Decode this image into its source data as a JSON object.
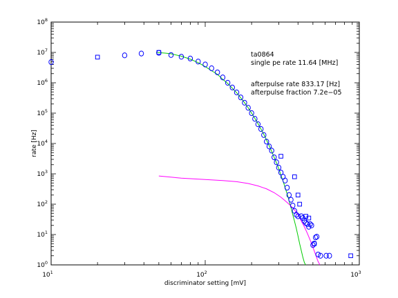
{
  "chart_data": {
    "type": "scatter",
    "title": "",
    "xlabel": "discriminator setting [mV]",
    "ylabel": "rate [Hz]",
    "xscale": "log",
    "yscale": "log",
    "xlim": [
      10,
      1000
    ],
    "ylim": [
      1,
      100000000
    ],
    "grid": false,
    "x_ticks": [
      {
        "value": 10,
        "base": "10",
        "exp": "1"
      },
      {
        "value": 100,
        "base": "10",
        "exp": "2"
      },
      {
        "value": 1000,
        "base": "10",
        "exp": "3"
      }
    ],
    "y_ticks": [
      {
        "value": 1,
        "base": "10",
        "exp": "0"
      },
      {
        "value": 10,
        "base": "10",
        "exp": "1"
      },
      {
        "value": 100,
        "base": "10",
        "exp": "2"
      },
      {
        "value": 1000,
        "base": "10",
        "exp": "3"
      },
      {
        "value": 10000,
        "base": "10",
        "exp": "4"
      },
      {
        "value": 100000,
        "base": "10",
        "exp": "5"
      },
      {
        "value": 1000000,
        "base": "10",
        "exp": "6"
      },
      {
        "value": 10000000,
        "base": "10",
        "exp": "7"
      },
      {
        "value": 100000000,
        "base": "10",
        "exp": "8"
      }
    ],
    "annotations": {
      "line1": "ta0864",
      "line2": "single pe rate 11.64 [MHz]",
      "line3": "afterpulse rate 833.17 [Hz]",
      "line4": "afterpulse fraction 7.2e−05"
    },
    "colors": {
      "markers": "#0000ff",
      "main_fit": "#00cc00",
      "afterpulse_fit": "#ff00ff"
    },
    "series": [
      {
        "marker": "circle",
        "x": [
          10,
          30,
          38.5,
          50,
          60,
          70,
          80,
          90,
          100,
          110,
          120,
          130,
          140,
          150,
          160,
          170,
          180,
          190,
          200,
          210,
          220,
          230,
          240,
          250,
          260,
          270,
          280,
          290,
          300,
          310,
          320,
          330,
          340,
          350,
          360,
          370,
          380,
          390,
          400,
          420,
          430,
          440,
          450,
          460,
          470,
          480,
          490,
          500,
          510,
          520,
          530,
          540,
          560,
          610,
          640
        ],
        "y": [
          4800000,
          8000000,
          9200000,
          9700000,
          8200000,
          7200000,
          6300000,
          5000000,
          4000000,
          3000000,
          2200000,
          1500000,
          1000000,
          700000,
          480000,
          330000,
          220000,
          150000,
          100000,
          65000,
          43000,
          30000,
          19000,
          11500,
          8000,
          5800,
          3500,
          2400,
          1600,
          1100,
          800,
          600,
          350,
          200,
          140,
          90,
          60,
          45,
          40,
          40,
          35,
          28,
          24,
          22,
          18,
          22,
          20,
          4.5,
          5,
          8,
          8.5,
          2.2,
          2,
          2,
          2
        ]
      },
      {
        "marker": "square",
        "x": [
          20,
          50,
          310,
          380,
          400,
          410,
          450,
          470,
          510,
          880
        ],
        "y": [
          7000000,
          10000000,
          3800,
          800,
          200,
          100,
          40,
          35,
          5,
          2
        ]
      }
    ],
    "fits": [
      {
        "name": "",
        "x": [
          48,
          55,
          60,
          70,
          80,
          90,
          100,
          110,
          120,
          130,
          140,
          150,
          160,
          170,
          180,
          190,
          200,
          210,
          220,
          230,
          240,
          250,
          260,
          270,
          280,
          290,
          300,
          310,
          320,
          330,
          340,
          350,
          360,
          370,
          380,
          390,
          400,
          410,
          420,
          430,
          440,
          448
        ],
        "y": [
          10000000,
          9500000,
          9000000,
          7500000,
          6000000,
          4600000,
          3400000,
          2500000,
          1900000,
          1300000,
          950000,
          660000,
          470000,
          320000,
          220000,
          150000,
          100000,
          67000,
          45000,
          30000,
          20000,
          13000,
          8500,
          5500,
          3500,
          2300,
          1500,
          900,
          580,
          350,
          220,
          130,
          78,
          45,
          27,
          16,
          9,
          5,
          3,
          1.8,
          1.2,
          1
        ]
      },
      {
        "name": "",
        "x": [
          50,
          70,
          100,
          130,
          160,
          190,
          220,
          250,
          280,
          310,
          330,
          350,
          370,
          390,
          400,
          420,
          440,
          460,
          480,
          500,
          520,
          540,
          555
        ],
        "y": [
          850,
          720,
          650,
          600,
          550,
          480,
          400,
          320,
          240,
          170,
          130,
          100,
          75,
          55,
          45,
          28,
          18,
          11,
          6.5,
          3.8,
          2.2,
          1.3,
          1
        ]
      }
    ]
  }
}
